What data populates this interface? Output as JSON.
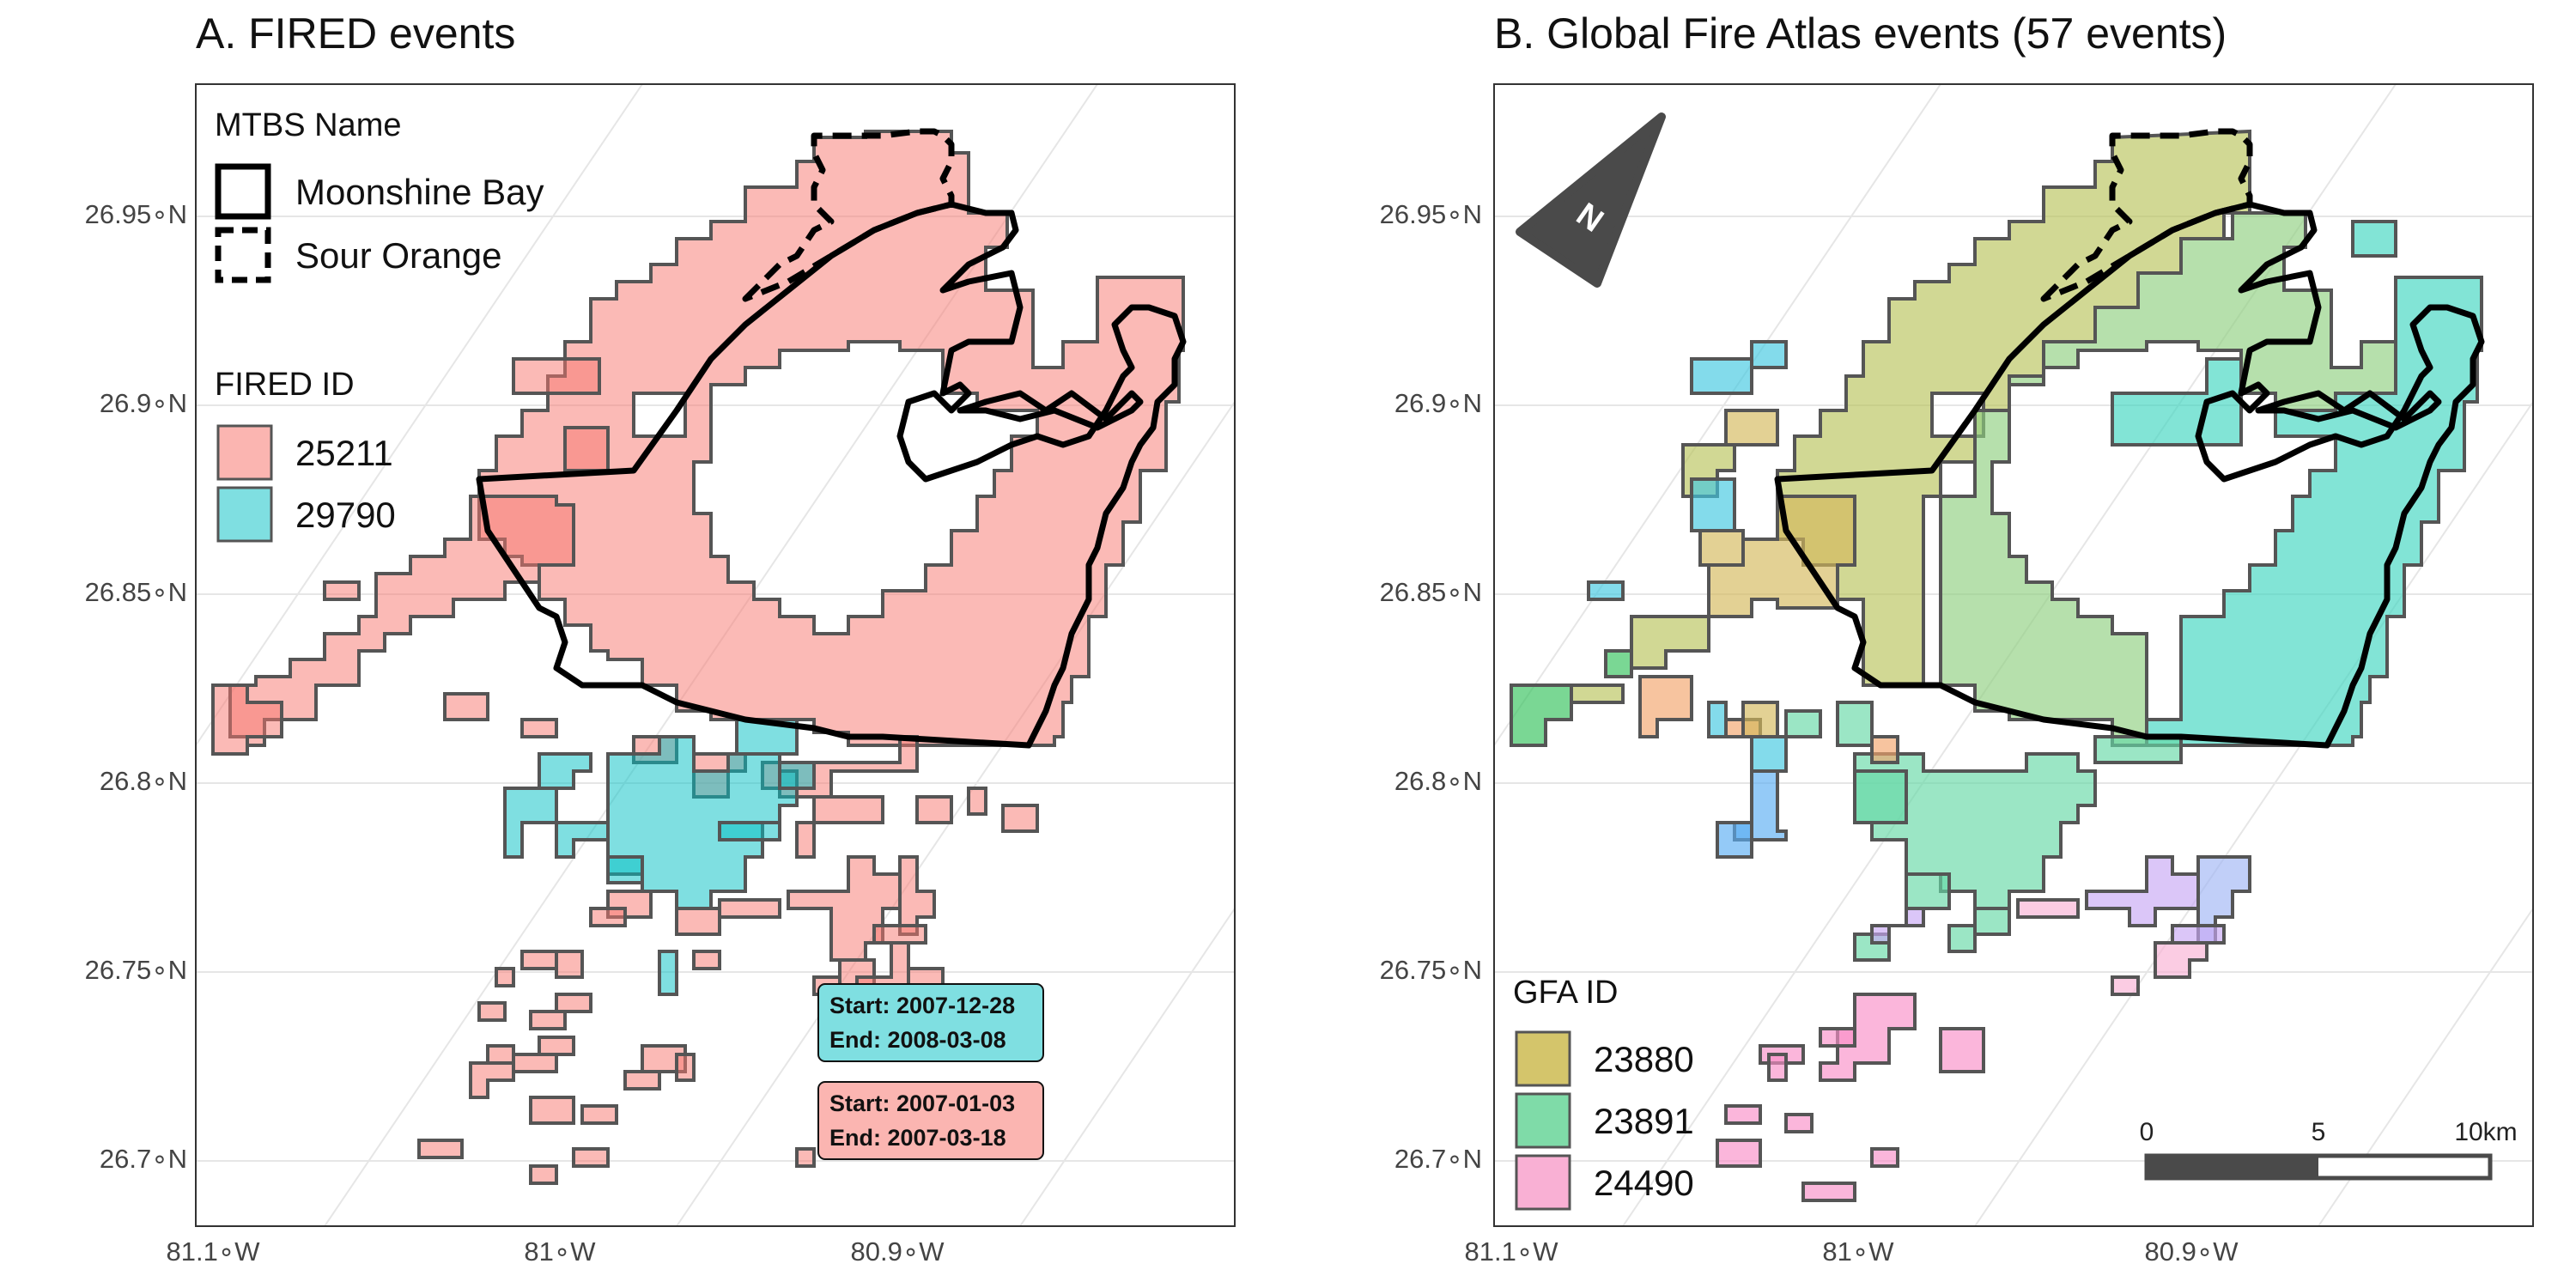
{
  "panels": [
    {
      "title": "A. FIRED events",
      "y_ticks": [
        "26.95∘N",
        "26.9∘N",
        "26.85∘N",
        "26.8∘N",
        "26.75∘N",
        "26.7∘N"
      ],
      "x_ticks": [
        "81.1∘W",
        "81∘W",
        "80.9∘W"
      ],
      "legend_mtbs": {
        "title": "MTBS Name",
        "items": [
          {
            "label": "Moonshine Bay",
            "line": "solid"
          },
          {
            "label": "Sour Orange",
            "line": "dashed"
          }
        ]
      },
      "legend_fired": {
        "title": "FIRED ID",
        "items": [
          {
            "label": "25211",
            "color": "#f8766d"
          },
          {
            "label": "29790",
            "color": "#00bfc4"
          }
        ]
      },
      "labels": [
        {
          "start": "Start: 2007-12-28",
          "end": "End: 2008-03-08",
          "color": "#7fdfe1"
        },
        {
          "start": "Start: 2007-01-03",
          "end": "End: 2007-03-18",
          "color": "#fbb5b1"
        }
      ]
    },
    {
      "title": "B. Global Fire Atlas events (57 events)",
      "y_ticks": [
        "26.95∘N",
        "26.9∘N",
        "26.85∘N",
        "26.8∘N",
        "26.75∘N",
        "26.7∘N"
      ],
      "x_ticks": [
        "81.1∘W",
        "81∘W",
        "80.9∘W"
      ],
      "north_arrow_label": "N",
      "legend_gfa": {
        "title": "GFA ID",
        "items": [
          {
            "label": "23880",
            "color": "#d4c56b"
          },
          {
            "label": "23891",
            "color": "#7fdba8"
          },
          {
            "label": "24490",
            "color": "#f9b0d4"
          }
        ]
      },
      "scale_bar": {
        "labels": [
          "0",
          "5",
          "10km"
        ]
      }
    }
  ],
  "colors": {
    "fired_25211": "#f8766d",
    "fired_29790": "#00bfc4",
    "gfa_olive": "#c8bf5a",
    "gfa_green": "#8fd07f",
    "gfa_teal": "#3fd6c0",
    "gfa_mint": "#66d9a6",
    "gfa_cyan": "#40c8e0",
    "gfa_blue": "#5aaef2",
    "gfa_pink": "#f98fc8",
    "gfa_lavender": "#c7a8f5",
    "gfa_orange": "#f2a56b",
    "gfa_greenbright": "#33c25a",
    "gridline": "#e5e5e5",
    "panel_border": "#333333"
  }
}
